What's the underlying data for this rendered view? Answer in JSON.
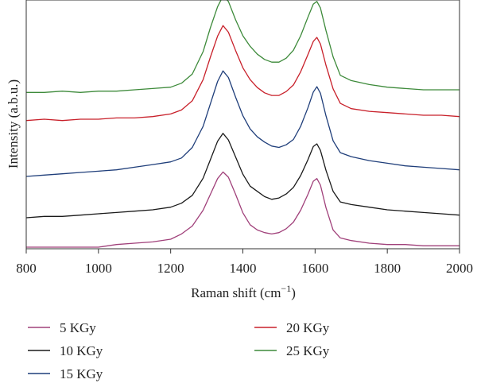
{
  "chart_data": {
    "type": "line",
    "xlabel": "Raman shift (cm",
    "xlabel_sup": "−1",
    "xlabel_close": ")",
    "ylabel": "Intensity (a.b.u.)",
    "xlim": [
      800,
      2000
    ],
    "xticks": [
      800,
      1000,
      1200,
      1400,
      1600,
      1800,
      2000
    ],
    "y_ticks_shown": false,
    "grid": false,
    "legend_position": "below",
    "series": [
      {
        "name": "5 KGy",
        "color": "#a0407a",
        "x": [
          800,
          1000,
          1050,
          1100,
          1150,
          1200,
          1230,
          1260,
          1290,
          1310,
          1330,
          1345,
          1360,
          1380,
          1400,
          1420,
          1440,
          1460,
          1480,
          1500,
          1520,
          1540,
          1560,
          1580,
          1595,
          1605,
          1615,
          1630,
          1650,
          1670,
          1700,
          1750,
          1800,
          1850,
          1900,
          1950,
          2000
        ],
        "y": [
          0,
          0,
          2,
          3,
          4,
          6,
          10,
          16,
          28,
          40,
          52,
          57,
          53,
          40,
          26,
          17,
          13,
          11,
          10,
          11,
          14,
          19,
          28,
          40,
          50,
          52,
          47,
          30,
          13,
          7,
          5,
          3,
          2,
          2,
          1,
          1,
          1
        ]
      },
      {
        "name": "10 KGy",
        "color": "#1a1a1a",
        "x": [
          800,
          850,
          900,
          950,
          1000,
          1050,
          1100,
          1150,
          1200,
          1230,
          1260,
          1290,
          1310,
          1330,
          1345,
          1360,
          1380,
          1400,
          1420,
          1440,
          1460,
          1480,
          1500,
          1520,
          1540,
          1560,
          1580,
          1595,
          1605,
          1615,
          1630,
          1650,
          1670,
          1700,
          1750,
          1800,
          1850,
          1900,
          1950,
          2000
        ],
        "y": [
          0,
          1,
          1,
          2,
          3,
          4,
          5,
          6,
          8,
          11,
          17,
          30,
          44,
          58,
          64,
          59,
          46,
          33,
          24,
          20,
          16,
          14,
          15,
          18,
          23,
          32,
          44,
          54,
          56,
          51,
          36,
          20,
          12,
          10,
          8,
          6,
          5,
          4,
          3,
          2
        ]
      },
      {
        "name": "15 KGy",
        "color": "#1f3e7a",
        "x": [
          800,
          850,
          900,
          950,
          1000,
          1050,
          1100,
          1150,
          1200,
          1230,
          1260,
          1290,
          1310,
          1330,
          1345,
          1360,
          1380,
          1400,
          1420,
          1440,
          1460,
          1480,
          1500,
          1520,
          1540,
          1560,
          1580,
          1595,
          1605,
          1615,
          1630,
          1650,
          1670,
          1700,
          1750,
          1800,
          1850,
          1900,
          1950,
          2000
        ],
        "y": [
          0,
          1,
          2,
          3,
          4,
          5,
          7,
          9,
          11,
          14,
          22,
          38,
          55,
          72,
          80,
          75,
          60,
          46,
          36,
          30,
          26,
          23,
          22,
          24,
          28,
          38,
          52,
          64,
          68,
          63,
          46,
          27,
          18,
          15,
          12,
          10,
          8,
          7,
          6,
          5
        ]
      },
      {
        "name": "20 KGy",
        "color": "#c8202a",
        "x": [
          800,
          850,
          900,
          950,
          1000,
          1050,
          1100,
          1150,
          1200,
          1230,
          1260,
          1290,
          1310,
          1330,
          1345,
          1360,
          1380,
          1400,
          1420,
          1440,
          1460,
          1480,
          1500,
          1520,
          1540,
          1560,
          1580,
          1595,
          1605,
          1615,
          1630,
          1650,
          1670,
          1700,
          1750,
          1800,
          1850,
          1900,
          1950,
          2000
        ],
        "y": [
          2,
          3,
          2,
          3,
          3,
          4,
          4,
          5,
          7,
          10,
          17,
          33,
          50,
          66,
          74,
          69,
          55,
          42,
          33,
          27,
          23,
          21,
          21,
          24,
          29,
          39,
          52,
          62,
          65,
          60,
          44,
          26,
          15,
          11,
          9,
          8,
          7,
          6,
          6,
          5
        ]
      },
      {
        "name": "25 KGy",
        "color": "#3d8a3a",
        "x": [
          800,
          850,
          900,
          950,
          1000,
          1050,
          1100,
          1150,
          1200,
          1230,
          1260,
          1290,
          1310,
          1330,
          1345,
          1360,
          1380,
          1400,
          1420,
          1440,
          1460,
          1480,
          1500,
          1520,
          1540,
          1560,
          1580,
          1595,
          1605,
          1615,
          1630,
          1650,
          1670,
          1700,
          1750,
          1800,
          1850,
          1900,
          1950,
          2000
        ],
        "y": [
          1,
          1,
          2,
          1,
          2,
          2,
          3,
          4,
          5,
          8,
          15,
          32,
          50,
          66,
          74,
          70,
          56,
          44,
          36,
          30,
          26,
          24,
          24,
          27,
          33,
          44,
          58,
          68,
          70,
          65,
          48,
          28,
          14,
          10,
          7,
          5,
          4,
          3,
          3,
          3
        ]
      }
    ]
  }
}
